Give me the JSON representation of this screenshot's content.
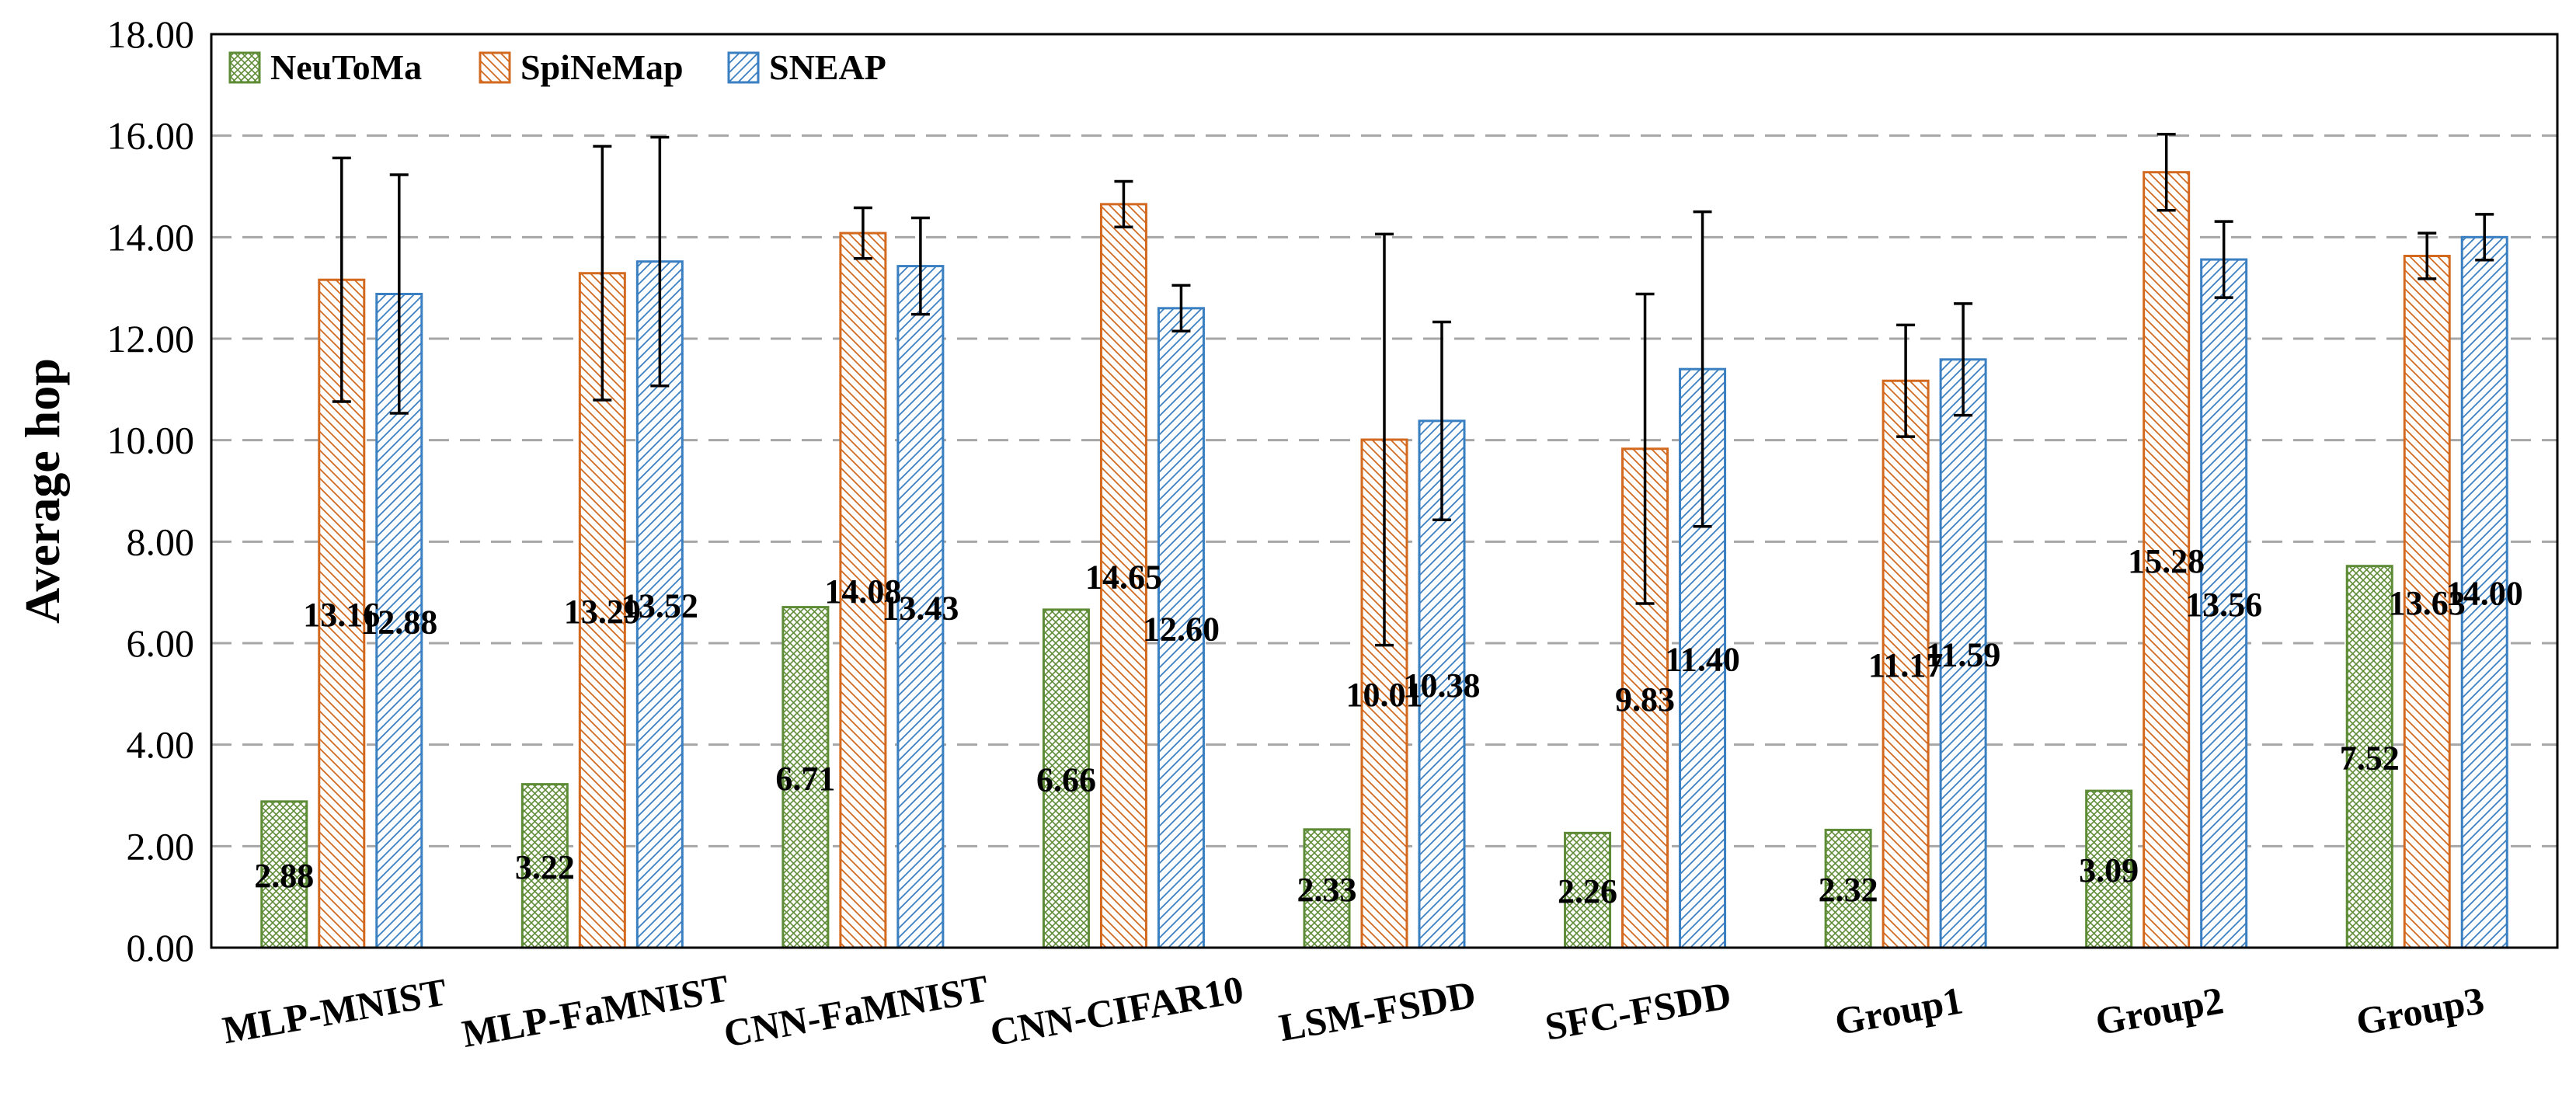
{
  "chart_data": {
    "type": "bar",
    "title": "",
    "xlabel": "",
    "ylabel": "Average hop",
    "ylim": [
      0,
      18
    ],
    "yticks": [
      "0.00",
      "2.00",
      "4.00",
      "6.00",
      "8.00",
      "10.00",
      "12.00",
      "14.00",
      "16.00",
      "18.00"
    ],
    "grid": true,
    "legend_position": "top-left",
    "categories": [
      "MLP-MNIST",
      "MLP-FaMNIST",
      "CNN-FaMNIST",
      "CNN-CIFAR10",
      "LSM-FSDD",
      "SFC-FSDD",
      "Group1",
      "Group2",
      "Group3"
    ],
    "series": [
      {
        "name": "NeuToMa",
        "color": "#5e8c36",
        "pattern": "crosshatch",
        "values": [
          2.88,
          3.22,
          6.71,
          6.66,
          2.33,
          2.26,
          2.32,
          3.09,
          7.52
        ],
        "labels": [
          "2.88",
          "3.22",
          "6.71",
          "6.66",
          "2.33",
          "2.26",
          "2.32",
          "3.09",
          "7.52"
        ],
        "errors": null
      },
      {
        "name": "SpiNeMap",
        "color": "#d2691e",
        "pattern": "diagonal-back",
        "values": [
          13.16,
          13.29,
          14.08,
          14.65,
          10.01,
          9.83,
          11.17,
          15.28,
          13.63
        ],
        "labels": [
          "13.16",
          "13.29",
          "14.08",
          "14.65",
          "10.01",
          "9.83",
          "11.17",
          "15.28",
          "13.63"
        ],
        "errors": [
          2.4,
          2.5,
          0.5,
          0.45,
          4.05,
          3.05,
          1.1,
          0.75,
          0.45
        ]
      },
      {
        "name": "SNEAP",
        "color": "#3a7fc1",
        "pattern": "diagonal-forward",
        "values": [
          12.88,
          13.52,
          13.43,
          12.6,
          10.38,
          11.4,
          11.59,
          13.56,
          14.0
        ],
        "labels": [
          "12.88",
          "13.52",
          "13.43",
          "12.60",
          "10.38",
          "11.40",
          "11.59",
          "13.56",
          "14.00"
        ],
        "errors": [
          2.35,
          2.45,
          0.95,
          0.45,
          1.95,
          3.1,
          1.1,
          0.75,
          0.45
        ]
      }
    ]
  }
}
